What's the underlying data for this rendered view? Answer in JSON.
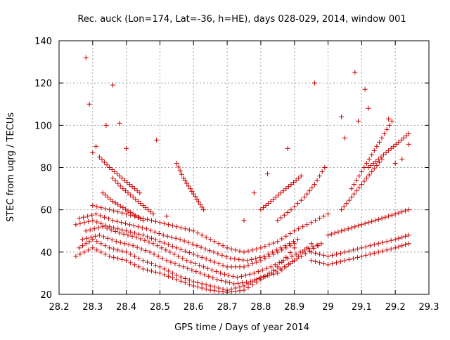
{
  "chart_data": {
    "type": "scatter",
    "title": "Rec. auck (Lon=174, Lat=-36, h=HE), days 028-029, 2014, window 001",
    "xlabel": "GPS time / Days of year 2014",
    "ylabel": "STEC from uqrg / TECUs",
    "xlim": [
      28.2,
      29.3
    ],
    "ylim": [
      20,
      140
    ],
    "x_ticks": [
      28.2,
      28.3,
      28.4,
      28.5,
      28.6,
      28.7,
      28.8,
      28.9,
      29.0,
      29.1,
      29.2,
      29.3
    ],
    "x_tick_labels": [
      "28.2",
      "28.3",
      "28.4",
      "28.5",
      "28.6",
      "28.7",
      "28.8",
      "28.9",
      "29",
      "29.1",
      "29.2",
      "29.3"
    ],
    "y_ticks": [
      20,
      40,
      60,
      80,
      100,
      120,
      140
    ],
    "y_tick_labels": [
      "20",
      "40",
      "60",
      "80",
      "100",
      "120",
      "140"
    ],
    "grid": true,
    "marker": "plus",
    "color": "#cc0000",
    "tracks": [
      {
        "x": [
          28.25,
          28.3,
          28.35,
          28.4,
          28.45,
          28.5,
          28.55,
          28.6,
          28.65,
          28.7,
          28.75,
          28.8,
          28.85,
          28.9
        ],
        "y": [
          38,
          42,
          38,
          36,
          32,
          30,
          27,
          24,
          22,
          21,
          22,
          27,
          33,
          42
        ]
      },
      {
        "x": [
          28.26,
          28.3,
          28.35,
          28.4,
          28.45,
          28.5,
          28.55,
          28.6,
          28.65,
          28.7,
          28.75,
          28.8,
          28.85,
          28.9,
          28.95
        ],
        "y": [
          42,
          46,
          42,
          40,
          36,
          33,
          29,
          26,
          24,
          22,
          24,
          28,
          30,
          36,
          44
        ]
      },
      {
        "x": [
          28.27,
          28.32,
          28.37,
          28.42,
          28.47,
          28.52,
          28.57,
          28.62,
          28.67,
          28.72,
          28.77,
          28.82,
          28.87,
          28.92,
          28.97
        ],
        "y": [
          46,
          48,
          45,
          43,
          40,
          36,
          33,
          30,
          27,
          25,
          26,
          29,
          33,
          38,
          43
        ]
      },
      {
        "x": [
          28.28,
          28.33,
          28.38,
          28.43,
          28.48,
          28.53,
          28.58,
          28.63,
          28.68,
          28.73,
          28.78,
          28.83,
          28.88,
          28.93,
          28.98
        ],
        "y": [
          50,
          52,
          49,
          47,
          44,
          40,
          36,
          33,
          30,
          28,
          30,
          33,
          37,
          41,
          44
        ]
      },
      {
        "x": [
          28.25,
          28.3,
          28.35,
          28.4,
          28.45,
          28.5,
          28.55,
          28.6,
          28.65,
          28.7,
          28.75,
          28.8,
          28.85,
          28.9
        ],
        "y": [
          53,
          55,
          52,
          50,
          48,
          45,
          42,
          39,
          36,
          33,
          33,
          36,
          40,
          44
        ]
      },
      {
        "x": [
          28.26,
          28.31,
          28.36,
          28.41,
          28.46,
          28.51,
          28.56,
          28.61,
          28.66,
          28.71,
          28.76,
          28.81,
          28.86,
          28.91
        ],
        "y": [
          56,
          58,
          55,
          53,
          51,
          48,
          46,
          43,
          40,
          37,
          36,
          38,
          42,
          46
        ]
      },
      {
        "x": [
          28.3,
          28.35,
          28.4,
          28.45,
          28.5,
          28.55,
          28.6,
          28.65,
          28.7,
          28.75,
          28.8,
          28.85,
          28.9,
          28.95,
          29.0
        ],
        "y": [
          62,
          60,
          58,
          56,
          54,
          52,
          50,
          46,
          42,
          40,
          42,
          45,
          50,
          54,
          58
        ]
      },
      {
        "x": [
          28.33,
          28.36,
          28.39,
          28.42,
          28.45
        ],
        "y": [
          68,
          64,
          61,
          58,
          55
        ]
      },
      {
        "x": [
          28.36,
          28.39,
          28.42,
          28.45,
          28.48
        ],
        "y": [
          75,
          70,
          66,
          62,
          58
        ]
      },
      {
        "x": [
          28.32,
          28.35,
          28.38,
          28.41,
          28.44
        ],
        "y": [
          85,
          80,
          76,
          72,
          68
        ]
      },
      {
        "x": [
          28.55,
          28.57,
          28.59,
          28.61,
          28.63
        ],
        "y": [
          82,
          75,
          70,
          65,
          60
        ]
      },
      {
        "x": [
          28.8,
          28.83,
          28.86,
          28.89,
          28.92
        ],
        "y": [
          60,
          64,
          68,
          72,
          76
        ]
      },
      {
        "x": [
          28.85,
          28.89,
          28.93,
          28.96,
          28.99
        ],
        "y": [
          55,
          60,
          66,
          72,
          80
        ]
      },
      {
        "x": [
          28.95,
          29.0,
          29.05,
          29.1,
          29.15,
          29.2,
          29.24
        ],
        "y": [
          36,
          34,
          36,
          38,
          40,
          42,
          44
        ]
      },
      {
        "x": [
          28.95,
          29.0,
          29.05,
          29.1,
          29.15,
          29.2,
          29.24
        ],
        "y": [
          40,
          38,
          40,
          42,
          44,
          46,
          48
        ]
      },
      {
        "x": [
          29.0,
          29.04,
          29.08,
          29.12,
          29.16,
          29.2,
          29.24
        ],
        "y": [
          48,
          50,
          52,
          54,
          56,
          58,
          60
        ]
      },
      {
        "x": [
          29.04,
          29.07,
          29.1,
          29.13,
          29.16
        ],
        "y": [
          60,
          66,
          72,
          78,
          84
        ]
      },
      {
        "x": [
          29.07,
          29.1,
          29.13,
          29.16,
          29.19
        ],
        "y": [
          70,
          78,
          86,
          94,
          102
        ]
      },
      {
        "x": [
          29.12,
          29.15,
          29.18,
          29.21,
          29.24
        ],
        "y": [
          80,
          84,
          88,
          92,
          96
        ]
      }
    ],
    "outliers": {
      "x": [
        28.28,
        28.29,
        28.3,
        28.31,
        28.34,
        28.36,
        28.38,
        28.4,
        28.49,
        28.52,
        28.75,
        28.78,
        28.82,
        28.88,
        28.96,
        29.04,
        29.08,
        29.11,
        29.18,
        29.24,
        29.22,
        29.2,
        29.12,
        29.09,
        29.05
      ],
      "y": [
        132,
        110,
        87,
        90,
        100,
        119,
        101,
        89,
        93,
        57,
        55,
        68,
        77,
        89,
        120,
        104,
        125,
        117,
        103,
        91,
        84,
        82,
        108,
        102,
        94
      ]
    }
  }
}
